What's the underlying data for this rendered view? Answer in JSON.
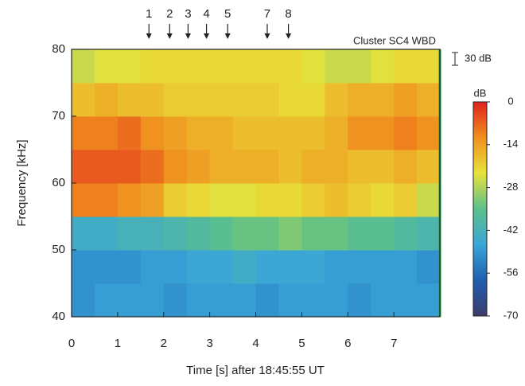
{
  "chart_data": {
    "type": "heatmap",
    "title": "Cluster SC4 WBD",
    "xlabel": "Time [s] after 18:45:55 UT",
    "ylabel": "Frequency [kHz]",
    "xlim": [
      0,
      8
    ],
    "ylim": [
      40,
      80
    ],
    "xticks": [
      0,
      1,
      2,
      3,
      4,
      5,
      6,
      7
    ],
    "yticks": [
      40,
      50,
      60,
      70,
      80
    ],
    "x_bins": [
      0,
      0.5,
      1,
      1.5,
      2,
      2.5,
      3,
      3.5,
      4,
      4.5,
      5,
      5.5,
      6,
      6.5,
      7,
      7.5,
      8
    ],
    "y_bins": [
      40,
      45,
      50,
      55,
      60,
      65,
      70,
      75,
      80
    ],
    "z": [
      [
        -50,
        -48,
        -48,
        -48,
        -50,
        -48,
        -48,
        -48,
        -50,
        -48,
        -48,
        -48,
        -50,
        -48,
        -48,
        -48
      ],
      [
        -50,
        -50,
        -50,
        -48,
        -48,
        -46,
        -46,
        -44,
        -46,
        -46,
        -46,
        -48,
        -48,
        -48,
        -48,
        -50
      ],
      [
        -44,
        -44,
        -42,
        -42,
        -40,
        -38,
        -36,
        -34,
        -34,
        -32,
        -34,
        -34,
        -36,
        -36,
        -38,
        -40
      ],
      [
        -10,
        -10,
        -12,
        -14,
        -20,
        -22,
        -24,
        -24,
        -22,
        -22,
        -20,
        -18,
        -20,
        -22,
        -20,
        -26
      ],
      [
        -6,
        -6,
        -6,
        -8,
        -12,
        -14,
        -16,
        -16,
        -16,
        -18,
        -16,
        -16,
        -18,
        -18,
        -16,
        -18
      ],
      [
        -10,
        -10,
        -8,
        -12,
        -14,
        -16,
        -16,
        -18,
        -18,
        -18,
        -18,
        -16,
        -12,
        -12,
        -10,
        -12
      ],
      [
        -18,
        -16,
        -18,
        -18,
        -20,
        -20,
        -20,
        -20,
        -20,
        -22,
        -22,
        -18,
        -16,
        -16,
        -14,
        -16
      ],
      [
        -26,
        -24,
        -24,
        -22,
        -22,
        -22,
        -22,
        -22,
        -22,
        -22,
        -24,
        -26,
        -26,
        -24,
        -22,
        -22
      ]
    ],
    "colormap": [
      "#3c3c6c",
      "#1f5fb0",
      "#3aa6d8",
      "#5cc08a",
      "#e8e23a",
      "#f0901e",
      "#e0201e"
    ],
    "colorbar": {
      "label": "dB",
      "lim": [
        -70,
        0
      ],
      "ticks": [
        0,
        -14,
        -28,
        -42,
        -56,
        -70
      ]
    },
    "markers": [
      {
        "label": "1",
        "x": 1.68
      },
      {
        "label": "2",
        "x": 2.13
      },
      {
        "label": "3",
        "x": 2.53
      },
      {
        "label": "4",
        "x": 2.93
      },
      {
        "label": "5",
        "x": 3.39
      },
      {
        "label": "7",
        "x": 4.25
      },
      {
        "label": "8",
        "x": 4.71
      }
    ],
    "scale_bar": "30 dB"
  }
}
